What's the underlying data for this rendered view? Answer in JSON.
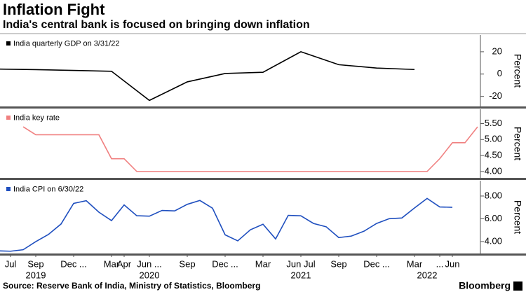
{
  "title": "Inflation Fight",
  "subtitle": "India's central bank is focused on bringing down inflation",
  "source": "Source: Reserve Bank of India, Ministry of Statistics, Bloomberg",
  "brand": "Bloomberg",
  "chart_data": [
    {
      "type": "line",
      "ylabel": "Percent",
      "ylim": [
        -29,
        35
      ],
      "yticks": [
        -20,
        0,
        20
      ],
      "series": [
        {
          "name": "India quarterly GDP on 3/31/22",
          "color": "#000000",
          "x": [
            "2019-06",
            "2019-09",
            "2019-12",
            "2020-03",
            "2020-06",
            "2020-09",
            "2020-12",
            "2021-03",
            "2021-06",
            "2021-09",
            "2021-12",
            "2022-03"
          ],
          "values": [
            4.5,
            4.0,
            3.3,
            2.5,
            -23.6,
            -7.0,
            0.5,
            1.6,
            20.0,
            8.4,
            5.4,
            4.1
          ]
        }
      ]
    },
    {
      "type": "line",
      "ylabel": "Percent",
      "ylim": [
        3.8,
        5.95
      ],
      "yticks": [
        {
          "value": 4,
          "label": "4.00"
        },
        {
          "value": 4.5,
          "label": "4.50"
        },
        {
          "value": 5,
          "label": "5.00"
        },
        {
          "value": 5.5,
          "label": "5.50"
        }
      ],
      "series": [
        {
          "name": "India key rate",
          "color": "#f08080",
          "x": [
            "2019-08",
            "2019-09",
            "2019-10",
            "2019-11",
            "2019-12",
            "2020-01",
            "2020-02",
            "2020-03",
            "2020-04",
            "2020-05",
            "2020-06",
            "2020-07",
            "2020-08",
            "2020-09",
            "2020-10",
            "2020-11",
            "2020-12",
            "2021-01",
            "2021-02",
            "2021-03",
            "2021-04",
            "2021-05",
            "2021-06",
            "2021-07",
            "2021-08",
            "2021-09",
            "2021-10",
            "2021-11",
            "2021-12",
            "2022-01",
            "2022-02",
            "2022-03",
            "2022-04",
            "2022-05",
            "2022-06",
            "2022-07",
            "2022-08"
          ],
          "values": [
            5.4,
            5.15,
            5.15,
            5.15,
            5.15,
            5.15,
            5.15,
            4.4,
            4.4,
            4,
            4,
            4,
            4,
            4,
            4,
            4,
            4,
            4,
            4,
            4,
            4,
            4,
            4,
            4,
            4,
            4,
            4,
            4,
            4,
            4,
            4,
            4,
            4,
            4.4,
            4.9,
            4.9,
            5.4
          ]
        }
      ]
    },
    {
      "type": "line",
      "ylabel": "Percent",
      "ylim": [
        2.95,
        9.35
      ],
      "yticks": [
        {
          "value": 4,
          "label": "4.00"
        },
        {
          "value": 6,
          "label": "6.00"
        },
        {
          "value": 8,
          "label": "8.00"
        }
      ],
      "xlim": [
        "2019-06",
        "2022-08"
      ],
      "xticks": [
        {
          "value": "2019-07",
          "label": "Jul"
        },
        {
          "value": "2019-09",
          "label": "Sep"
        },
        {
          "value": "2019-12",
          "label": "Dec ..."
        },
        {
          "value": "2020-03",
          "label": "Mar"
        },
        {
          "value": "2020-04",
          "label": "Apr"
        },
        {
          "value": "2020-06",
          "label": "Jun ..."
        },
        {
          "value": "2020-09",
          "label": "Sep"
        },
        {
          "value": "2020-12",
          "label": "Dec ..."
        },
        {
          "value": "2021-03",
          "label": "Mar"
        },
        {
          "value": "2021-06",
          "label": "Jun Jul"
        },
        {
          "value": "2021-09",
          "label": "Sep"
        },
        {
          "value": "2021-12",
          "label": "Dec ..."
        },
        {
          "value": "2022-03",
          "label": "Mar"
        },
        {
          "value": "2022-05",
          "label": "..."
        },
        {
          "value": "2022-06",
          "label": "Jun"
        }
      ],
      "year_ticks": [
        {
          "value": "2019-09",
          "label": "2019"
        },
        {
          "value": "2020-06",
          "label": "2020"
        },
        {
          "value": "2021-06",
          "label": "2021"
        },
        {
          "value": "2022-04",
          "label": "2022"
        }
      ],
      "series": [
        {
          "name": "India CPI on 6/30/22",
          "color": "#1f4fbf",
          "x": [
            "2019-06",
            "2019-07",
            "2019-08",
            "2019-09",
            "2019-10",
            "2019-11",
            "2019-12",
            "2020-01",
            "2020-02",
            "2020-03",
            "2020-04",
            "2020-05",
            "2020-06",
            "2020-07",
            "2020-08",
            "2020-09",
            "2020-10",
            "2020-11",
            "2020-12",
            "2021-01",
            "2021-02",
            "2021-03",
            "2021-04",
            "2021-05",
            "2021-06",
            "2021-07",
            "2021-08",
            "2021-09",
            "2021-10",
            "2021-11",
            "2021-12",
            "2022-01",
            "2022-02",
            "2022-03",
            "2022-04",
            "2022-05",
            "2022-06"
          ],
          "values": [
            3.18,
            3.15,
            3.28,
            3.99,
            4.62,
            5.54,
            7.35,
            7.59,
            6.58,
            5.84,
            7.22,
            6.27,
            6.23,
            6.73,
            6.69,
            7.27,
            7.61,
            6.93,
            4.59,
            4.06,
            5.03,
            5.52,
            4.23,
            6.3,
            6.26,
            5.59,
            5.3,
            4.35,
            4.48,
            4.91,
            5.59,
            6.01,
            6.07,
            6.95,
            7.79,
            7.04,
            7.01
          ]
        }
      ]
    }
  ]
}
